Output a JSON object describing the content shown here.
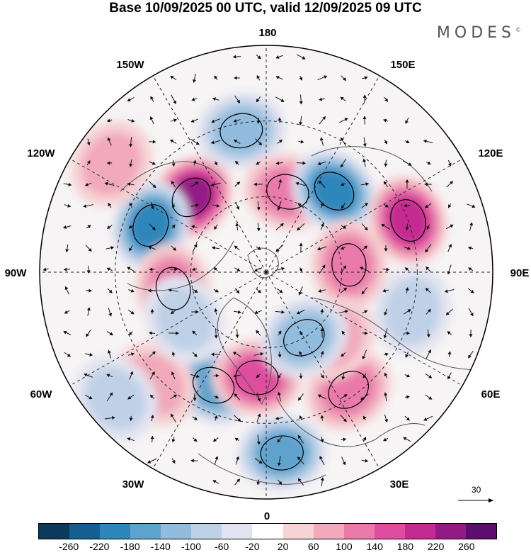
{
  "title": "Base 10/09/2025 00 UTC, valid 12/09/2025 09 UTC",
  "brand": "MODES",
  "brand_mark": "©",
  "longitude_labels": {
    "top": "180",
    "bottom": "0",
    "left": "90W",
    "right": "90E",
    "upper_left": "150W",
    "upper_right": "150E",
    "mid_upper_left": "120W",
    "mid_upper_right": "120E",
    "mid_lower_left": "60W",
    "mid_lower_right": "60E",
    "lower_left": "30W",
    "lower_right": "30E"
  },
  "wind_reference": {
    "value": "30",
    "icon": "arrow-right-icon"
  },
  "colorbar": {
    "ticks": [
      "-260",
      "-220",
      "-180",
      "-140",
      "-100",
      "-60",
      "-20",
      "20",
      "60",
      "100",
      "140",
      "180",
      "220",
      "260"
    ],
    "colors": [
      "#0b3a5c",
      "#145f8f",
      "#2e86bb",
      "#5ea3cd",
      "#91bcdd",
      "#bfd1e7",
      "#e2e3f0",
      "#ffffff",
      "#f6d3d4",
      "#f1a9bb",
      "#e97aaa",
      "#df4e9e",
      "#c52a90",
      "#921a85",
      "#5d0d6e"
    ]
  },
  "anomalies": [
    {
      "type": "positive",
      "level": 220,
      "lon": -135,
      "colat": 28
    },
    {
      "type": "negative",
      "level": -180,
      "lon": -112,
      "colat": 33
    },
    {
      "type": "negative",
      "level": -100,
      "lon": -170,
      "colat": 38
    },
    {
      "type": "positive",
      "level": 100,
      "lon": 165,
      "colat": 22
    },
    {
      "type": "negative",
      "level": -180,
      "lon": 140,
      "colat": 28
    },
    {
      "type": "positive",
      "level": 180,
      "lon": 110,
      "colat": 40
    },
    {
      "type": "positive",
      "level": 60,
      "lon": -125,
      "colat": 50
    },
    {
      "type": "positive",
      "level": 100,
      "lon": -80,
      "colat": 25
    },
    {
      "type": "negative",
      "level": -60,
      "lon": 75,
      "colat": 40
    },
    {
      "type": "positive",
      "level": 100,
      "lon": 95,
      "colat": 22
    },
    {
      "type": "negative",
      "level": -140,
      "lon": -25,
      "colat": 33
    },
    {
      "type": "positive",
      "level": 140,
      "lon": -5,
      "colat": 28
    },
    {
      "type": "negative",
      "level": -140,
      "lon": 5,
      "colat": 48
    },
    {
      "type": "positive",
      "level": 100,
      "lon": 35,
      "colat": 38
    },
    {
      "type": "positive",
      "level": 60,
      "lon": 45,
      "colat": 25
    },
    {
      "type": "negative",
      "level": -100,
      "lon": 30,
      "colat": 20
    },
    {
      "type": "positive",
      "level": 60,
      "lon": -45,
      "colat": 42
    },
    {
      "type": "negative",
      "level": -60,
      "lon": -50,
      "colat": 52
    },
    {
      "type": "negative",
      "level": -60,
      "lon": -60,
      "colat": 25
    }
  ]
}
